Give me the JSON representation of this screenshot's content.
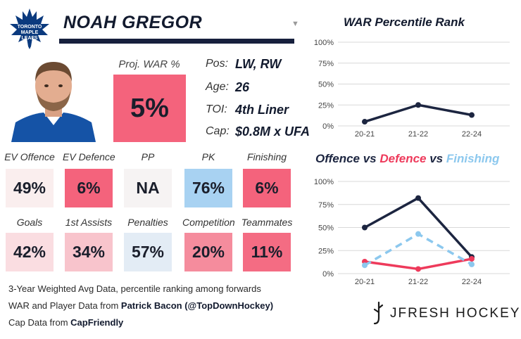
{
  "player": {
    "name": "NOAH GREGOR",
    "team_logo_text": [
      "TORONTO",
      "MAPLE",
      "LEAFS"
    ],
    "proj_war_label": "Proj. WAR %",
    "proj_war_value": "5%",
    "bio": [
      {
        "key": "Pos:",
        "value": "LW, RW"
      },
      {
        "key": "Age:",
        "value": "26"
      },
      {
        "key": "TOI:",
        "value": "4th Liner"
      },
      {
        "key": "Cap:",
        "value": "$0.8M x UFA"
      }
    ]
  },
  "stats_row1": [
    {
      "label": "EV Offence",
      "value": "49%",
      "color": "#faeeee"
    },
    {
      "label": "EV Defence",
      "value": "6%",
      "color": "#f4637c"
    },
    {
      "label": "PP",
      "value": "NA",
      "color": "#f6f3f3"
    },
    {
      "label": "PK",
      "value": "76%",
      "color": "#a8d2f2"
    },
    {
      "label": "Finishing",
      "value": "6%",
      "color": "#f4637c"
    }
  ],
  "stats_row2": [
    {
      "label": "Goals",
      "value": "42%",
      "color": "#fadde1"
    },
    {
      "label": "1st Assists",
      "value": "34%",
      "color": "#f8c4cc"
    },
    {
      "label": "Penalties",
      "value": "57%",
      "color": "#e3ecf5"
    },
    {
      "label": "Competition",
      "value": "20%",
      "color": "#f58c9d"
    },
    {
      "label": "Teammates",
      "value": "11%",
      "color": "#f46c83"
    }
  ],
  "footer": {
    "line1": "3-Year Weighted Avg Data, percentile ranking among forwards",
    "line2_prefix": "WAR and Player Data from ",
    "line2_bold": "Patrick Bacon (@TopDownHockey)",
    "line3_prefix": "Cap Data from ",
    "line3_bold": "CapFriendly"
  },
  "brand": "JFRESH HOCKEY",
  "colors": {
    "navy": "#1c2540",
    "red": "#ee3a5b",
    "light_blue": "#8cc8ee"
  },
  "chart_data": [
    {
      "type": "line",
      "title": "WAR Percentile Rank",
      "categories": [
        "20-21",
        "21-22",
        "22-24"
      ],
      "ylim": [
        0,
        100
      ],
      "yticks": [
        "0%",
        "25%",
        "50%",
        "75%",
        "100%"
      ],
      "grid": true,
      "series": [
        {
          "values": [
            5,
            25,
            13
          ],
          "color": "#1c2540",
          "dash": false
        }
      ]
    },
    {
      "type": "line",
      "title_parts": [
        {
          "text": "Offence",
          "color": "#1c2540"
        },
        {
          "text": " vs ",
          "color": "#1c2540"
        },
        {
          "text": "Defence",
          "color": "#ee3a5b"
        },
        {
          "text": " vs ",
          "color": "#1c2540"
        },
        {
          "text": "Finishing",
          "color": "#8cc8ee"
        }
      ],
      "categories": [
        "20-21",
        "21-22",
        "22-24"
      ],
      "ylim": [
        0,
        100
      ],
      "yticks": [
        "0%",
        "25%",
        "50%",
        "75%",
        "100%"
      ],
      "grid": true,
      "series": [
        {
          "name": "Offence",
          "values": [
            50,
            82,
            18
          ],
          "color": "#1c2540",
          "dash": false
        },
        {
          "name": "Defence",
          "values": [
            13,
            5,
            16
          ],
          "color": "#ee3a5b",
          "dash": false
        },
        {
          "name": "Finishing",
          "values": [
            9,
            43,
            10
          ],
          "color": "#8cc8ee",
          "dash": true
        }
      ]
    }
  ]
}
